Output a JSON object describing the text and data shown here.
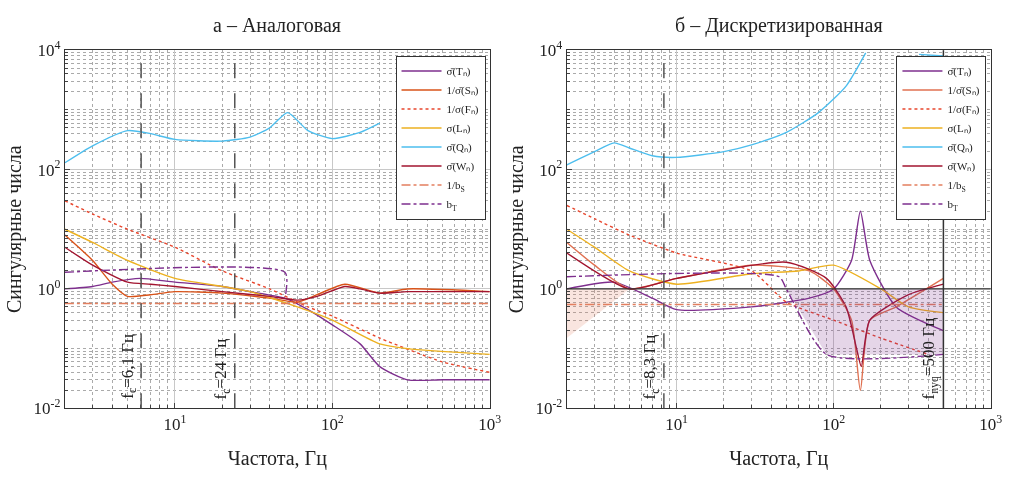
{
  "chart_data": [
    {
      "type": "line",
      "title": "a – Аналоговая",
      "xlabel": "Частота, Гц",
      "ylabel": "Сингулярные числа",
      "log": "xy",
      "grid": true,
      "legend": "top right",
      "xlim": [
        2,
        1000
      ],
      "xticks": [
        {
          "value": 10,
          "label": "10$^{1}$"
        },
        {
          "value": 100,
          "label": "10$^{2}$"
        },
        {
          "value": 1000,
          "label": "10$^{3}$"
        }
      ],
      "ylim": [
        0.01,
        10000
      ],
      "yticks": [
        {
          "value": 0.01,
          "label": "10$^{-2}$"
        },
        {
          "value": 1,
          "label": "10$^{0}$"
        },
        {
          "value": 100,
          "label": "10$^{2}$"
        },
        {
          "value": 10000,
          "label": "10$^{4}$"
        }
      ],
      "ref_lines": [
        {
          "axis": "x",
          "value": 6.1,
          "label": "f$_{c}$=6,1 Гц",
          "color": "#555555",
          "line_style": "dashed"
        },
        {
          "axis": "x",
          "value": 24,
          "label": "f$_{c}$=24 Гц",
          "color": "#555555",
          "line_style": "dashed"
        }
      ],
      "series": [
        {
          "name": "σ̄(Tₙ)",
          "color": "#7e2f8e",
          "x": [
            2,
            3,
            4,
            6,
            10,
            20,
            30,
            50,
            70,
            100,
            150,
            200,
            300,
            500,
            1000
          ],
          "values": [
            1.0,
            1.1,
            1.3,
            1.5,
            1.3,
            1.1,
            0.9,
            0.7,
            0.45,
            0.25,
            0.12,
            0.05,
            0.03,
            0.03,
            0.03
          ]
        },
        {
          "name": "1/σ̄(Sₙ)",
          "color": "#d95319",
          "x": [
            2,
            3,
            4,
            5,
            7,
            10,
            20,
            40,
            60,
            80,
            120,
            200,
            300,
            1000
          ],
          "values": [
            8,
            3,
            1.2,
            0.75,
            0.8,
            0.9,
            0.85,
            0.7,
            0.6,
            0.8,
            1.2,
            0.85,
            1.0,
            0.9
          ]
        },
        {
          "name": "1/σ(Fₙ)",
          "color": "#e8452c",
          "x": [
            2,
            3,
            5,
            10,
            20,
            40,
            70,
            100,
            200,
            500,
            1000
          ],
          "values": [
            30,
            18,
            10,
            5,
            2,
            1,
            0.5,
            0.35,
            0.15,
            0.06,
            0.04
          ],
          "line_style": "dotted"
        },
        {
          "name": "σ(Lₙ)",
          "color": "#edb120",
          "x": [
            2,
            3,
            5,
            10,
            20,
            30,
            60,
            100,
            200,
            300,
            1000
          ],
          "values": [
            10,
            6,
            3,
            1.5,
            1.1,
            0.9,
            0.5,
            0.3,
            0.12,
            0.1,
            0.08
          ]
        },
        {
          "name": "σ̄(Qₙ)",
          "color": "#4dbeee",
          "x": [
            2,
            3,
            5,
            7,
            10,
            20,
            30,
            40,
            52,
            70,
            100,
            150,
            200
          ],
          "values": [
            130,
            250,
            450,
            400,
            320,
            300,
            350,
            500,
            900,
            450,
            330,
            420,
            600
          ]
        },
        {
          "name": "σ̄(Wₙ)",
          "color": "#a2142f",
          "x": [
            2,
            3,
            5,
            7,
            10,
            20,
            40,
            60,
            80,
            120,
            150,
            200,
            300,
            500,
            1000
          ],
          "values": [
            5,
            2.5,
            1.3,
            1.2,
            1.1,
            0.9,
            0.75,
            0.65,
            0.75,
            1.1,
            1.0,
            0.85,
            0.9,
            0.9,
            0.9
          ]
        },
        {
          "name": "1/b$_{S}$",
          "color": "#e37f5f",
          "x": [
            2,
            1000
          ],
          "values": [
            0.57,
            0.57
          ],
          "line_style": "dashed"
        },
        {
          "name": "b$_{T}$",
          "color": "#7e2f8e",
          "x": [
            2,
            50,
            50.5
          ],
          "values": [
            1.9,
            1.9,
            0.8
          ],
          "line_style": "dashed"
        }
      ]
    },
    {
      "type": "line",
      "title": "б – Дискретизированная",
      "xlabel": "Частота, Гц",
      "ylabel": "Сингулярные числа",
      "log": "xy",
      "grid": true,
      "legend": "top right",
      "xlim": [
        2,
        1000
      ],
      "xticks": [
        {
          "value": 10,
          "label": "10$^{1}$"
        },
        {
          "value": 100,
          "label": "10$^{2}$"
        },
        {
          "value": 1000,
          "label": "10$^{3}$"
        }
      ],
      "ylim": [
        0.01,
        10000
      ],
      "yticks": [
        {
          "value": 0.01,
          "label": "10$^{-2}$"
        },
        {
          "value": 1,
          "label": "10$^{0}$"
        },
        {
          "value": 100,
          "label": "10$^{2}$"
        },
        {
          "value": 10000,
          "label": "10$^{4}$"
        }
      ],
      "ref_lines": [
        {
          "axis": "x",
          "value": 8.3,
          "label": "f$_{c}$=8,3 Гц",
          "color": "#555555",
          "line_style": "dashed"
        },
        {
          "axis": "x",
          "value": 500,
          "label": "f$_{nyq}$=500 Гц",
          "color": "#333333",
          "line_style": "solid"
        },
        {
          "axis": "y",
          "value": 1,
          "color": "#333333",
          "line_style": "solid"
        }
      ],
      "series": [
        {
          "name": "σ̄(Tₙ)",
          "color": "#7e2f8e",
          "x": [
            2,
            4,
            7,
            10,
            30,
            70,
            100,
            130,
            148,
            170,
            250,
            500
          ],
          "values": [
            1.0,
            1.3,
            0.7,
            0.45,
            0.5,
            0.7,
            1.0,
            3,
            20,
            3,
            0.5,
            0.2
          ]
        },
        {
          "name": "1/σ̄(Sₙ)",
          "color": "#e07050",
          "x": [
            2,
            3,
            5,
            10,
            30,
            70,
            100,
            130,
            148,
            170,
            250,
            500
          ],
          "values": [
            6,
            2.5,
            1.0,
            1.5,
            2.5,
            2.0,
            1.0,
            0.3,
            0.02,
            0.3,
            0.5,
            1.5
          ]
        },
        {
          "name": "1/σ(Fₙ)",
          "color": "#e8452c",
          "x": [
            2,
            3,
            5,
            10,
            30,
            50,
            100,
            200,
            400
          ],
          "values": [
            25,
            15,
            8,
            4,
            2,
            0.6,
            0.3,
            0.15,
            0.08
          ],
          "line_style": "dotted"
        },
        {
          "name": "σ(Lₙ)",
          "color": "#edb120",
          "x": [
            2,
            3,
            5,
            10,
            30,
            60,
            100,
            200,
            300,
            500
          ],
          "values": [
            10,
            5,
            2,
            1.2,
            1.8,
            2.0,
            2.5,
            1.0,
            0.5,
            0.4
          ]
        },
        {
          "name": "σ̄(Qₙ)",
          "color": "#4dbeee",
          "x": [
            2,
            3,
            4,
            5,
            7,
            10,
            20,
            30,
            50,
            80,
            120,
            160,
            250,
            350,
            500
          ],
          "values": [
            120,
            200,
            280,
            230,
            170,
            160,
            200,
            260,
            420,
            900,
            2500,
            9000,
            null,
            8500,
            8000
          ]
        },
        {
          "name": "σ̄(Wₙ)",
          "color": "#a2142f",
          "x": [
            2,
            5,
            10,
            50,
            90,
            120,
            140,
            150,
            170,
            300,
            500
          ],
          "values": [
            4,
            1.0,
            1.5,
            2.8,
            1.5,
            0.5,
            0.1,
            0.05,
            0.3,
            0.8,
            1.2
          ]
        },
        {
          "name": "1/b$_{S}$",
          "color": "#e37f5f",
          "x": [
            2,
            5,
            500
          ],
          "values": [
            0.55,
            0.55,
            0.55
          ],
          "line_style": "dashed",
          "lower": [
            0.15,
            1,
            null
          ],
          "upper": [
            1,
            1,
            null
          ]
        },
        {
          "name": "b$_{T}$",
          "color": "#7e2f8e",
          "x": [
            2,
            45,
            50,
            90,
            500
          ],
          "values": [
            1.6,
            1.6,
            1.0,
            0.08,
            0.08
          ],
          "line_style": "dashed",
          "lower": [
            null,
            null,
            1.0,
            0.08,
            0.08
          ],
          "upper": [
            null,
            null,
            1,
            1,
            1
          ]
        }
      ]
    }
  ]
}
